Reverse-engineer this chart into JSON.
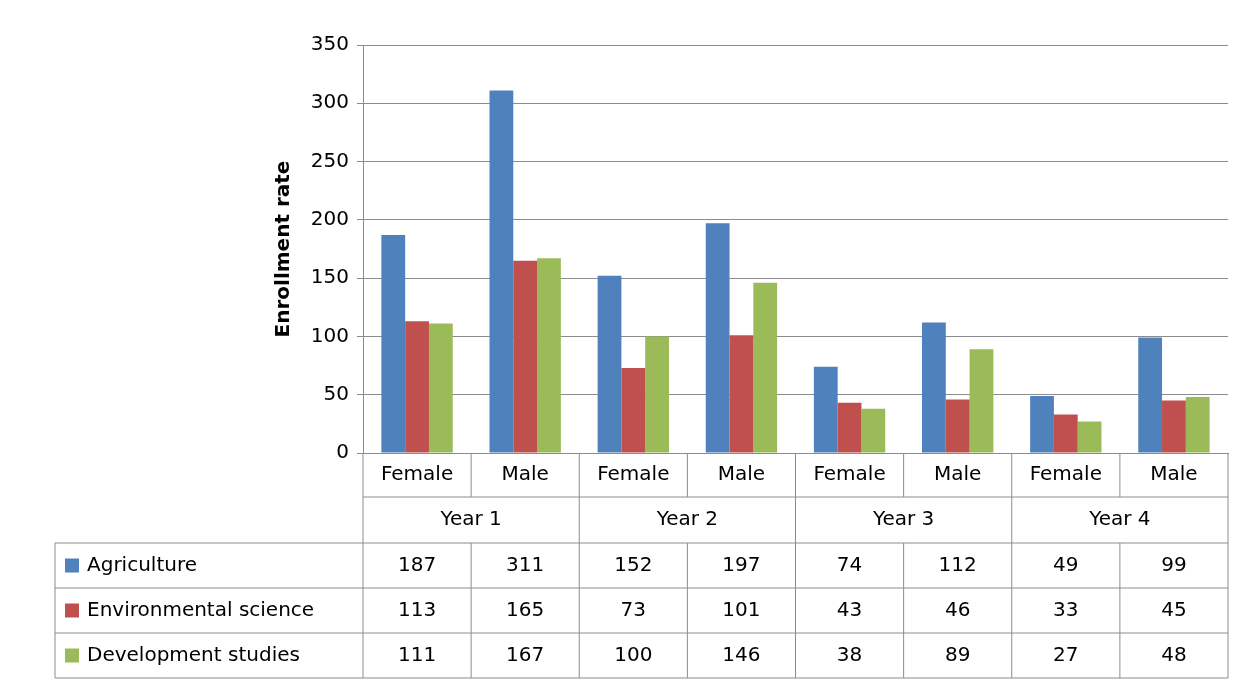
{
  "chart_data": {
    "type": "bar",
    "ylabel": "Enrollment rate",
    "categories": [
      "Female",
      "Male",
      "Female",
      "Male",
      "Female",
      "Male",
      "Female",
      "Male"
    ],
    "annotations": [
      "Year 1",
      "Year 2",
      "Year 3",
      "Year 4"
    ],
    "series": [
      {
        "name": "Agriculture",
        "color": "#4f81bd",
        "values": [
          187,
          311,
          152,
          197,
          74,
          112,
          49,
          99
        ]
      },
      {
        "name": "Environmental science",
        "color": "#c0504d",
        "values": [
          113,
          165,
          73,
          101,
          43,
          46,
          33,
          45
        ]
      },
      {
        "name": "Development studies",
        "color": "#9bbb59",
        "values": [
          111,
          167,
          100,
          146,
          38,
          89,
          27,
          48
        ]
      }
    ],
    "ylim": [
      0,
      350
    ],
    "yticks": [
      0,
      50,
      100,
      150,
      200,
      250,
      300,
      350
    ],
    "grid": "y",
    "legend": "bottom left",
    "data_labels": true
  }
}
